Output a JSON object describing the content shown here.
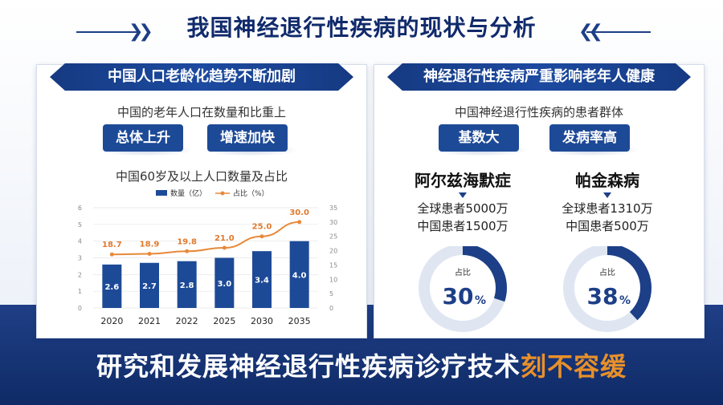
{
  "title": "我国神经退行性疾病的现状与分析",
  "left_panel": {
    "header": "中国人口老龄化趋势不断加剧",
    "subtitle": "中国的老年人口在数量和比重上",
    "pills": [
      "总体上升",
      "增速加快"
    ],
    "chart_title": "中国60岁及以上人口数量及占比"
  },
  "right_panel": {
    "header": "神经退行性疾病严重影响老年人健康",
    "subtitle": "中国神经退行性疾病的患者群体",
    "pills": [
      "基数大",
      "发病率高"
    ],
    "diseases": [
      {
        "name": "阿尔兹海默症",
        "global": "全球患者5000万",
        "china": "中国患者1500万",
        "gauge_label": "占比",
        "gauge_value": "30",
        "gauge_unit": "%",
        "percent": 30
      },
      {
        "name": "帕金森病",
        "global": "全球患者1310万",
        "china": "中国患者500万",
        "gauge_label": "占比",
        "gauge_value": "38",
        "gauge_unit": "%",
        "percent": 38
      }
    ]
  },
  "footer": {
    "main": "研究和发展神经退行性疾病诊疗技术",
    "accent": "刻不容缓"
  },
  "colors": {
    "bar": "#1d4a97",
    "line": "#e8893a",
    "accent": "#e8902a",
    "navy": "#102a6b"
  },
  "chart_data": {
    "type": "bar",
    "title": "中国60岁及以上人口数量及占比",
    "categories": [
      "2020",
      "2021",
      "2022",
      "2025",
      "2030",
      "2035"
    ],
    "series": [
      {
        "name": "数量（亿）",
        "type": "bar",
        "axis": "left",
        "values": [
          2.6,
          2.7,
          2.8,
          3.0,
          3.4,
          4.0
        ],
        "labels": [
          "2.6",
          "2.7",
          "2.8",
          "3.0",
          "3.4",
          "4.0"
        ]
      },
      {
        "name": "占比（%）",
        "type": "line",
        "axis": "right",
        "values": [
          18.7,
          18.9,
          19.8,
          21.0,
          25.0,
          30.0
        ],
        "labels": [
          "18.7",
          "18.9",
          "19.8",
          "21.0",
          "25.0",
          "30.0"
        ]
      }
    ],
    "y_left": {
      "min": 0,
      "max": 6,
      "ticks": [
        "0",
        "1",
        "2",
        "3",
        "4",
        "5",
        "6"
      ]
    },
    "y_right": {
      "min": 0,
      "max": 35,
      "ticks": [
        "0",
        "5",
        "10",
        "15",
        "20",
        "25",
        "30",
        "35"
      ]
    },
    "legend_position": "top-center",
    "grid": true
  }
}
